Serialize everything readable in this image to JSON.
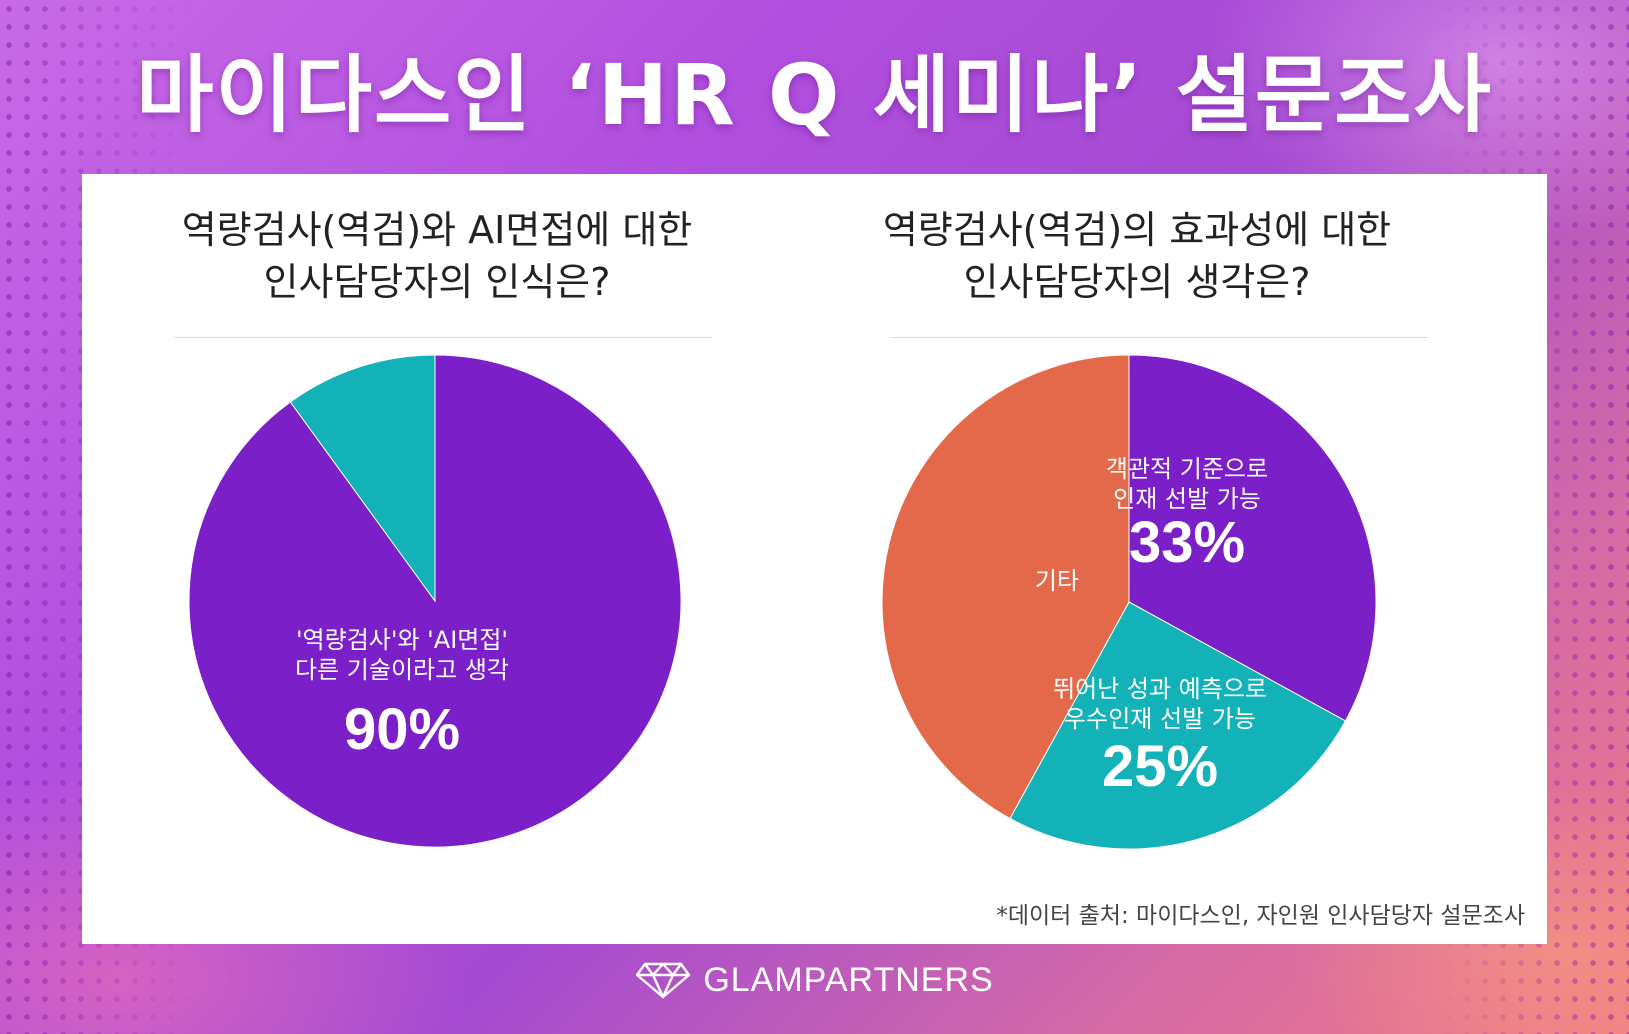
{
  "title": "마이다스인 ‘HR Q 세미나’ 설문조사",
  "colors": {
    "purple": "#7b1fc9",
    "teal": "#12b2b8",
    "orange": "#e4694a",
    "label": "#ffffff"
  },
  "source_note": "*데이터 출처: 마이다스인, 자인원 인사담당자 설문조사",
  "footer": {
    "brand": "GLAMPARTNERS",
    "logo_icon": "diamond-icon"
  },
  "chart_data": [
    {
      "type": "pie",
      "title_lines": [
        "역량검사(역검)와 AI면접에 대한",
        "인사담당자의 인식은?"
      ],
      "slices": [
        {
          "label_lines": [
            "'역량검사'와 'AI면접'",
            "다른 기술이라고 생각"
          ],
          "value": 90,
          "value_label": "90%",
          "color": "#7b1fc9"
        },
        {
          "label_lines": [],
          "value": 10,
          "value_label": "",
          "color": "#12b2b8"
        }
      ]
    },
    {
      "type": "pie",
      "title_lines": [
        "역량검사(역검)의 효과성에 대한",
        "인사담당자의 생각은?"
      ],
      "slices": [
        {
          "label_lines": [
            "객관적 기준으로",
            "인재 선발 가능"
          ],
          "value": 33,
          "value_label": "33%",
          "color": "#7b1fc9"
        },
        {
          "label_lines": [
            "뛰어난 성과 예측으로",
            "우수인재 선발 가능"
          ],
          "value": 25,
          "value_label": "25%",
          "color": "#12b2b8"
        },
        {
          "label_lines": [
            "기타"
          ],
          "value": 42,
          "value_label": "",
          "color": "#e4694a"
        }
      ]
    }
  ]
}
